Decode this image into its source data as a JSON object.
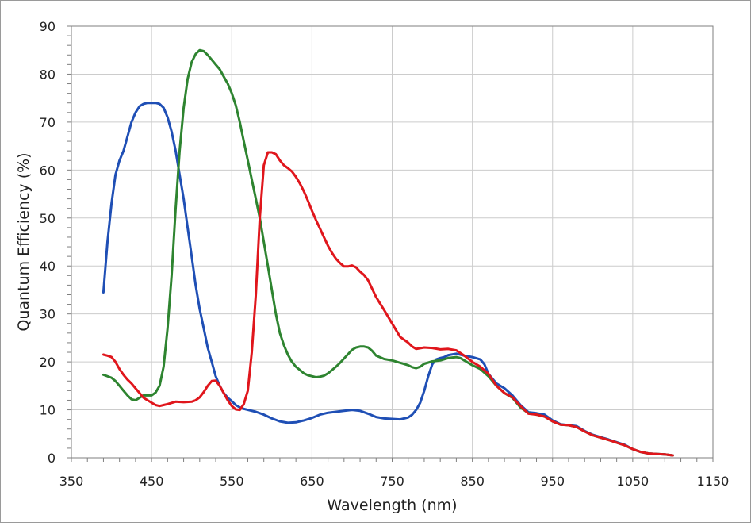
{
  "chart_data": {
    "type": "line",
    "title": "",
    "xlabel": "Wavelength (nm)",
    "ylabel": "Quantum Efficiency (%)",
    "xlim": [
      350,
      1150
    ],
    "ylim": [
      0,
      90
    ],
    "xticks": [
      350,
      450,
      550,
      650,
      750,
      850,
      950,
      1050,
      1150
    ],
    "yticks": [
      0,
      10,
      20,
      30,
      40,
      50,
      60,
      70,
      80,
      90
    ],
    "grid": true,
    "legend": "none",
    "series": [
      {
        "color": "#1f4fb5",
        "points": [
          [
            390,
            34.5
          ],
          [
            395,
            45
          ],
          [
            400,
            53
          ],
          [
            405,
            59
          ],
          [
            410,
            62
          ],
          [
            415,
            64
          ],
          [
            420,
            67
          ],
          [
            425,
            70
          ],
          [
            430,
            72
          ],
          [
            435,
            73.3
          ],
          [
            440,
            73.8
          ],
          [
            445,
            74
          ],
          [
            450,
            74
          ],
          [
            455,
            74
          ],
          [
            460,
            73.8
          ],
          [
            465,
            73
          ],
          [
            470,
            71
          ],
          [
            475,
            68
          ],
          [
            480,
            64
          ],
          [
            485,
            59
          ],
          [
            490,
            54
          ],
          [
            495,
            48
          ],
          [
            500,
            42
          ],
          [
            505,
            36
          ],
          [
            510,
            31
          ],
          [
            515,
            27
          ],
          [
            520,
            23
          ],
          [
            525,
            20
          ],
          [
            530,
            17
          ],
          [
            535,
            15
          ],
          [
            540,
            13.5
          ],
          [
            545,
            12.5
          ],
          [
            550,
            11.8
          ],
          [
            555,
            11
          ],
          [
            560,
            10.5
          ],
          [
            565,
            10.2
          ],
          [
            570,
            10
          ],
          [
            580,
            9.6
          ],
          [
            590,
            9
          ],
          [
            600,
            8.2
          ],
          [
            610,
            7.6
          ],
          [
            620,
            7.3
          ],
          [
            630,
            7.4
          ],
          [
            640,
            7.8
          ],
          [
            650,
            8.3
          ],
          [
            660,
            9
          ],
          [
            670,
            9.4
          ],
          [
            680,
            9.6
          ],
          [
            690,
            9.8
          ],
          [
            700,
            10
          ],
          [
            710,
            9.8
          ],
          [
            720,
            9.2
          ],
          [
            730,
            8.5
          ],
          [
            740,
            8.2
          ],
          [
            750,
            8.1
          ],
          [
            760,
            8
          ],
          [
            770,
            8.4
          ],
          [
            775,
            9
          ],
          [
            780,
            10
          ],
          [
            785,
            11.5
          ],
          [
            790,
            14
          ],
          [
            795,
            17
          ],
          [
            800,
            19.5
          ],
          [
            805,
            20.5
          ],
          [
            810,
            20.8
          ],
          [
            815,
            21
          ],
          [
            820,
            21.4
          ],
          [
            830,
            21.7
          ],
          [
            840,
            21.3
          ],
          [
            850,
            21
          ],
          [
            860,
            20.5
          ],
          [
            865,
            19.5
          ],
          [
            870,
            17.5
          ],
          [
            880,
            15.5
          ],
          [
            890,
            14.5
          ],
          [
            900,
            13
          ],
          [
            910,
            11
          ],
          [
            920,
            9.5
          ],
          [
            930,
            9.3
          ],
          [
            940,
            9
          ],
          [
            950,
            7.8
          ],
          [
            960,
            7
          ],
          [
            970,
            6.8
          ],
          [
            980,
            6.6
          ],
          [
            990,
            5.6
          ],
          [
            1000,
            4.8
          ],
          [
            1020,
            3.8
          ],
          [
            1040,
            2.7
          ],
          [
            1050,
            1.8
          ],
          [
            1060,
            1.2
          ],
          [
            1070,
            0.9
          ],
          [
            1080,
            0.8
          ],
          [
            1090,
            0.7
          ],
          [
            1100,
            0.5
          ]
        ]
      },
      {
        "color": "#2e8430",
        "points": [
          [
            390,
            17.3
          ],
          [
            400,
            16.7
          ],
          [
            405,
            16
          ],
          [
            410,
            15
          ],
          [
            415,
            14
          ],
          [
            420,
            13
          ],
          [
            425,
            12.2
          ],
          [
            430,
            12
          ],
          [
            435,
            12.5
          ],
          [
            440,
            13
          ],
          [
            445,
            13
          ],
          [
            450,
            13
          ],
          [
            455,
            13.6
          ],
          [
            460,
            15
          ],
          [
            465,
            19
          ],
          [
            470,
            27
          ],
          [
            475,
            38
          ],
          [
            480,
            52
          ],
          [
            485,
            64
          ],
          [
            490,
            73
          ],
          [
            495,
            79
          ],
          [
            500,
            82.5
          ],
          [
            505,
            84.2
          ],
          [
            510,
            85
          ],
          [
            515,
            84.8
          ],
          [
            520,
            84
          ],
          [
            525,
            83
          ],
          [
            530,
            82
          ],
          [
            535,
            81
          ],
          [
            540,
            79.5
          ],
          [
            545,
            78
          ],
          [
            550,
            76
          ],
          [
            555,
            73.5
          ],
          [
            560,
            70
          ],
          [
            565,
            66
          ],
          [
            570,
            62
          ],
          [
            575,
            58
          ],
          [
            580,
            54
          ],
          [
            585,
            50
          ],
          [
            590,
            45
          ],
          [
            595,
            40
          ],
          [
            600,
            35
          ],
          [
            605,
            30
          ],
          [
            610,
            26
          ],
          [
            615,
            23.5
          ],
          [
            620,
            21.5
          ],
          [
            625,
            20
          ],
          [
            630,
            19
          ],
          [
            635,
            18.3
          ],
          [
            640,
            17.6
          ],
          [
            645,
            17.2
          ],
          [
            650,
            17
          ],
          [
            655,
            16.8
          ],
          [
            660,
            16.9
          ],
          [
            665,
            17.1
          ],
          [
            670,
            17.6
          ],
          [
            675,
            18.3
          ],
          [
            680,
            19
          ],
          [
            685,
            19.8
          ],
          [
            690,
            20.7
          ],
          [
            695,
            21.6
          ],
          [
            700,
            22.5
          ],
          [
            705,
            23
          ],
          [
            710,
            23.2
          ],
          [
            715,
            23.2
          ],
          [
            720,
            23
          ],
          [
            725,
            22.3
          ],
          [
            730,
            21.3
          ],
          [
            740,
            20.6
          ],
          [
            750,
            20.3
          ],
          [
            760,
            19.8
          ],
          [
            770,
            19.3
          ],
          [
            775,
            18.9
          ],
          [
            780,
            18.7
          ],
          [
            785,
            19
          ],
          [
            790,
            19.6
          ],
          [
            800,
            20.1
          ],
          [
            810,
            20.3
          ],
          [
            820,
            20.8
          ],
          [
            830,
            21
          ],
          [
            835,
            20.8
          ],
          [
            840,
            20.3
          ],
          [
            850,
            19.3
          ],
          [
            860,
            18.5
          ],
          [
            870,
            17
          ],
          [
            880,
            15
          ],
          [
            890,
            13.5
          ],
          [
            900,
            12.5
          ],
          [
            910,
            10.5
          ],
          [
            920,
            9.3
          ],
          [
            930,
            9
          ],
          [
            940,
            8.6
          ],
          [
            950,
            7.6
          ],
          [
            960,
            6.9
          ],
          [
            970,
            6.8
          ],
          [
            980,
            6.4
          ],
          [
            990,
            5.5
          ],
          [
            1000,
            4.7
          ],
          [
            1020,
            3.7
          ],
          [
            1040,
            2.6
          ],
          [
            1050,
            1.8
          ],
          [
            1060,
            1.2
          ],
          [
            1070,
            0.9
          ],
          [
            1080,
            0.8
          ],
          [
            1090,
            0.7
          ],
          [
            1100,
            0.5
          ]
        ]
      },
      {
        "color": "#e0161c",
        "points": [
          [
            390,
            21.5
          ],
          [
            395,
            21.3
          ],
          [
            400,
            21
          ],
          [
            405,
            20
          ],
          [
            410,
            18.5
          ],
          [
            415,
            17.3
          ],
          [
            420,
            16.3
          ],
          [
            425,
            15.5
          ],
          [
            430,
            14.5
          ],
          [
            435,
            13.5
          ],
          [
            440,
            12.5
          ],
          [
            445,
            12
          ],
          [
            450,
            11.5
          ],
          [
            455,
            11
          ],
          [
            460,
            10.8
          ],
          [
            465,
            11
          ],
          [
            470,
            11.2
          ],
          [
            480,
            11.7
          ],
          [
            490,
            11.6
          ],
          [
            500,
            11.7
          ],
          [
            505,
            12
          ],
          [
            510,
            12.6
          ],
          [
            515,
            13.7
          ],
          [
            520,
            15
          ],
          [
            525,
            16
          ],
          [
            530,
            16.1
          ],
          [
            535,
            15
          ],
          [
            540,
            13.5
          ],
          [
            545,
            12
          ],
          [
            550,
            10.8
          ],
          [
            555,
            10.1
          ],
          [
            560,
            10
          ],
          [
            565,
            11.2
          ],
          [
            570,
            14
          ],
          [
            575,
            22
          ],
          [
            580,
            34
          ],
          [
            585,
            50
          ],
          [
            590,
            61
          ],
          [
            595,
            63.7
          ],
          [
            600,
            63.7
          ],
          [
            605,
            63.3
          ],
          [
            610,
            62
          ],
          [
            615,
            61
          ],
          [
            620,
            60.4
          ],
          [
            625,
            59.7
          ],
          [
            630,
            58.6
          ],
          [
            635,
            57.2
          ],
          [
            640,
            55.5
          ],
          [
            645,
            53.6
          ],
          [
            650,
            51.5
          ],
          [
            655,
            49.6
          ],
          [
            660,
            47.8
          ],
          [
            665,
            46
          ],
          [
            670,
            44.2
          ],
          [
            675,
            42.7
          ],
          [
            680,
            41.5
          ],
          [
            685,
            40.6
          ],
          [
            690,
            39.9
          ],
          [
            695,
            39.9
          ],
          [
            700,
            40.1
          ],
          [
            705,
            39.7
          ],
          [
            710,
            38.8
          ],
          [
            715,
            38.1
          ],
          [
            720,
            37
          ],
          [
            730,
            33.5
          ],
          [
            740,
            30.8
          ],
          [
            750,
            28
          ],
          [
            760,
            25.2
          ],
          [
            770,
            24
          ],
          [
            775,
            23.2
          ],
          [
            780,
            22.7
          ],
          [
            790,
            23
          ],
          [
            800,
            22.9
          ],
          [
            810,
            22.6
          ],
          [
            820,
            22.7
          ],
          [
            830,
            22.4
          ],
          [
            840,
            21.3
          ],
          [
            850,
            20
          ],
          [
            860,
            19
          ],
          [
            870,
            17.5
          ],
          [
            880,
            15
          ],
          [
            890,
            13.5
          ],
          [
            900,
            12.6
          ],
          [
            910,
            10.8
          ],
          [
            920,
            9.2
          ],
          [
            930,
            9
          ],
          [
            940,
            8.6
          ],
          [
            950,
            7.6
          ],
          [
            960,
            6.9
          ],
          [
            970,
            6.8
          ],
          [
            980,
            6.4
          ],
          [
            990,
            5.5
          ],
          [
            1000,
            4.7
          ],
          [
            1020,
            3.7
          ],
          [
            1040,
            2.6
          ],
          [
            1050,
            1.8
          ],
          [
            1060,
            1.2
          ],
          [
            1070,
            0.9
          ],
          [
            1080,
            0.8
          ],
          [
            1090,
            0.7
          ],
          [
            1100,
            0.5
          ]
        ]
      }
    ]
  }
}
